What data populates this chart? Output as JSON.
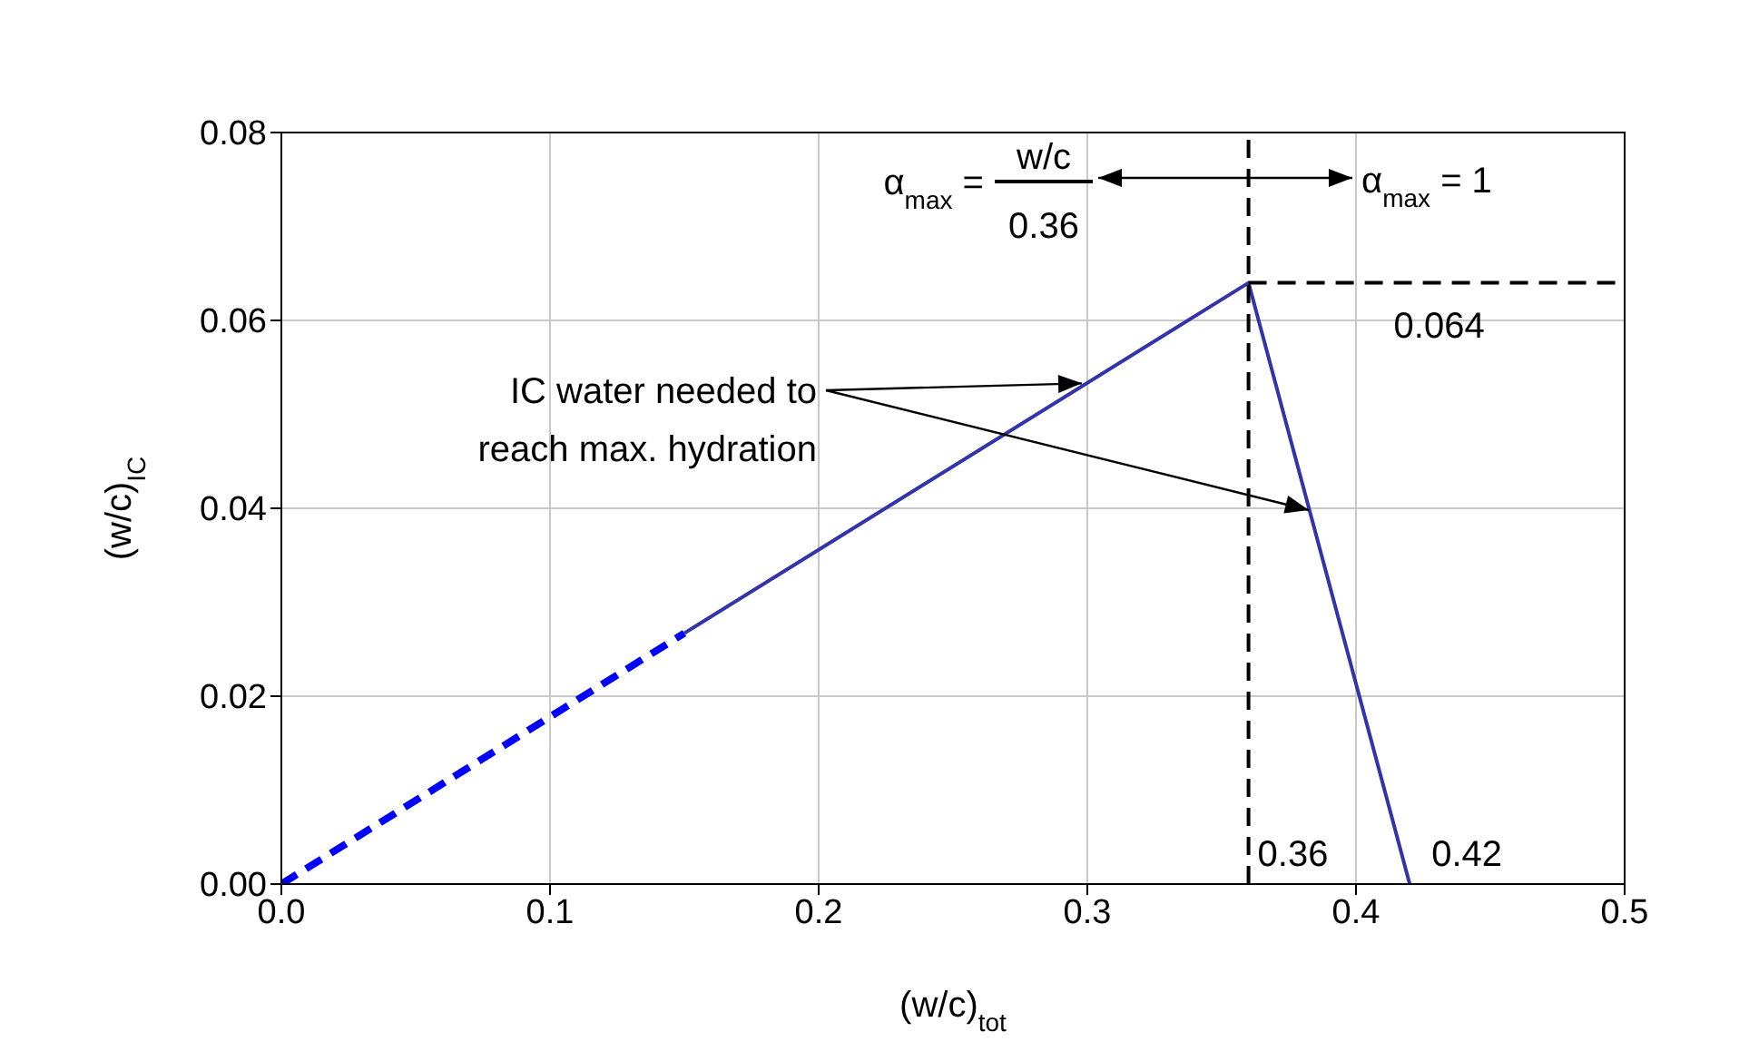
{
  "chart_data": {
    "type": "line",
    "xlabel": "(w/c)$_{tot}$",
    "ylabel": "(w/c)$_{IC}$",
    "xlim": [
      0,
      0.5
    ],
    "xticks": [
      {
        "value": 0,
        "label": "0.0"
      },
      0.1,
      0.2,
      0.3,
      0.4,
      0.5
    ],
    "ylim": [
      0,
      0.08
    ],
    "yticks": [
      {
        "value": 0,
        "label": "0.00"
      },
      0.02,
      0.04,
      0.06,
      0.08
    ],
    "grid": true,
    "marker": "none",
    "series": [
      {
        "color": "#0000ff",
        "line_style": "dashed",
        "x": [
          0,
          0.15
        ],
        "values": [
          0,
          0.0267
        ]
      },
      {
        "color": "#3333aa",
        "line_style": "solid",
        "x": [
          0.15,
          0.36,
          0.42
        ],
        "values": [
          0.0267,
          0.064,
          0
        ]
      }
    ],
    "ref_lines": [
      {
        "axis": "x",
        "value": 0.36,
        "label": "0.36",
        "color": "#000000",
        "line_style": "dashed"
      },
      {
        "axis": "y",
        "value": 0.064,
        "label": "0.064",
        "color": "#000000",
        "line_style": "dashed"
      }
    ],
    "annotations": [
      "α$_{max}$ =",
      "w/c",
      "0.36",
      "α$_{max}$ = 1",
      {
        "text": "IC water needed to\nreach max. hydration",
        "x": 0.3,
        "y": 0.0533
      },
      {
        "text": "0.42",
        "x": 0.42,
        "y": 0
      }
    ]
  }
}
